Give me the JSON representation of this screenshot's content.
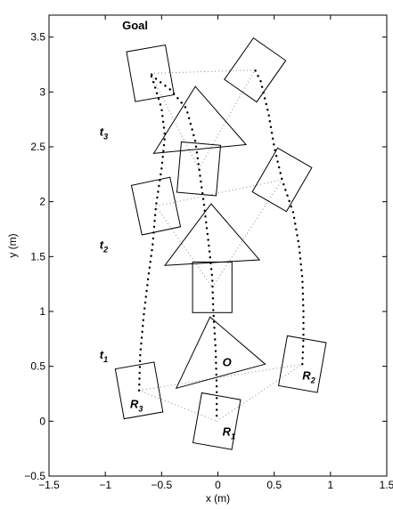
{
  "chart_data": {
    "type": "line",
    "xlabel": "x (m)",
    "ylabel": "y (m)",
    "xlim": [
      -1.5,
      1.5
    ],
    "ylim": [
      -0.5,
      3.7
    ],
    "x_ticks": [
      -1.5,
      -1,
      -0.5,
      0,
      0.5,
      1,
      1.5
    ],
    "y_ticks": [
      -0.5,
      0,
      0.5,
      1,
      1.5,
      2,
      2.5,
      3,
      3.5
    ],
    "x_tick_labels": [
      "−1.5",
      "−1",
      "−0.5",
      "0",
      "0.5",
      "1",
      "1.5"
    ],
    "y_tick_labels": [
      "−0.5",
      "0",
      "0.5",
      "1",
      "1.5",
      "2",
      "2.5",
      "3",
      "3.5"
    ],
    "grid": false,
    "annotations": [
      {
        "id": "goal",
        "text": "Goal",
        "sub": "",
        "x": -0.85,
        "y": 3.57
      },
      {
        "id": "t3",
        "text": "t",
        "sub": "3",
        "x": -1.05,
        "y": 2.6
      },
      {
        "id": "t2",
        "text": "t",
        "sub": "2",
        "x": -1.05,
        "y": 1.57
      },
      {
        "id": "t1",
        "text": "t",
        "sub": "1",
        "x": -1.05,
        "y": 0.57
      },
      {
        "id": "obstacle",
        "text": "O",
        "sub": "",
        "x": 0.04,
        "y": 0.5
      },
      {
        "id": "r1",
        "text": "R",
        "sub": "1",
        "x": 0.04,
        "y": -0.13
      },
      {
        "id": "r2",
        "text": "R",
        "sub": "2",
        "x": 0.75,
        "y": 0.38
      },
      {
        "id": "r3",
        "text": "R",
        "sub": "3",
        "x": -0.78,
        "y": 0.12
      }
    ],
    "robots": [
      {
        "cx": -0.01,
        "cy": 0.0,
        "w": 0.35,
        "h": 0.45,
        "angle_deg": 10
      },
      {
        "cx": 0.75,
        "cy": 0.52,
        "w": 0.35,
        "h": 0.45,
        "angle_deg": 10
      },
      {
        "cx": -0.7,
        "cy": 0.28,
        "w": 0.35,
        "h": 0.45,
        "angle_deg": -10
      },
      {
        "cx": -0.05,
        "cy": 1.22,
        "w": 0.35,
        "h": 0.45,
        "angle_deg": 0
      },
      {
        "cx": 0.57,
        "cy": 2.2,
        "w": 0.35,
        "h": 0.45,
        "angle_deg": 30
      },
      {
        "cx": -0.55,
        "cy": 1.96,
        "w": 0.35,
        "h": 0.45,
        "angle_deg": -12
      },
      {
        "cx": -0.17,
        "cy": 2.3,
        "w": 0.35,
        "h": 0.45,
        "angle_deg": 5
      },
      {
        "cx": 0.33,
        "cy": 3.2,
        "w": 0.35,
        "h": 0.45,
        "angle_deg": 35
      },
      {
        "cx": -0.6,
        "cy": 3.17,
        "w": 0.35,
        "h": 0.45,
        "angle_deg": -10
      }
    ],
    "obstacles": [
      {
        "vertices": [
          [
            -0.37,
            0.3
          ],
          [
            0.42,
            0.52
          ],
          [
            -0.07,
            0.95
          ]
        ]
      },
      {
        "vertices": [
          [
            -0.47,
            1.42
          ],
          [
            0.37,
            1.47
          ],
          [
            -0.06,
            1.98
          ]
        ]
      },
      {
        "vertices": [
          [
            -0.57,
            2.44
          ],
          [
            0.25,
            2.52
          ],
          [
            -0.2,
            3.05
          ]
        ]
      }
    ],
    "formations": [
      {
        "points": [
          [
            -0.01,
            0.0
          ],
          [
            0.75,
            0.52
          ],
          [
            -0.7,
            0.28
          ]
        ]
      },
      {
        "points": [
          [
            -0.05,
            1.22
          ],
          [
            0.57,
            2.2
          ],
          [
            -0.55,
            1.96
          ]
        ]
      },
      {
        "points": [
          [
            -0.17,
            2.3
          ],
          [
            0.33,
            3.2
          ],
          [
            -0.6,
            3.17
          ]
        ]
      }
    ],
    "series": [
      {
        "points": [
          [
            -0.01,
            0.05
          ],
          [
            -0.01,
            0.3
          ],
          [
            -0.02,
            0.65
          ],
          [
            -0.04,
            1.0
          ],
          [
            -0.05,
            1.3
          ],
          [
            -0.08,
            1.6
          ],
          [
            -0.12,
            1.95
          ],
          [
            -0.16,
            2.25
          ],
          [
            -0.2,
            2.55
          ],
          [
            -0.28,
            2.85
          ],
          [
            -0.42,
            3.02
          ],
          [
            -0.55,
            3.12
          ],
          [
            -0.6,
            3.17
          ]
        ]
      },
      {
        "points": [
          [
            0.75,
            0.52
          ],
          [
            0.76,
            0.75
          ],
          [
            0.76,
            1.0
          ],
          [
            0.75,
            1.3
          ],
          [
            0.72,
            1.6
          ],
          [
            0.67,
            1.9
          ],
          [
            0.57,
            2.2
          ],
          [
            0.5,
            2.5
          ],
          [
            0.45,
            2.8
          ],
          [
            0.38,
            3.1
          ],
          [
            0.33,
            3.2
          ]
        ]
      },
      {
        "points": [
          [
            -0.7,
            0.28
          ],
          [
            -0.69,
            0.6
          ],
          [
            -0.66,
            0.95
          ],
          [
            -0.62,
            1.3
          ],
          [
            -0.58,
            1.6
          ],
          [
            -0.55,
            1.96
          ],
          [
            -0.5,
            2.3
          ],
          [
            -0.47,
            2.6
          ],
          [
            -0.5,
            2.85
          ],
          [
            -0.56,
            3.05
          ],
          [
            -0.6,
            3.17
          ]
        ]
      }
    ]
  }
}
